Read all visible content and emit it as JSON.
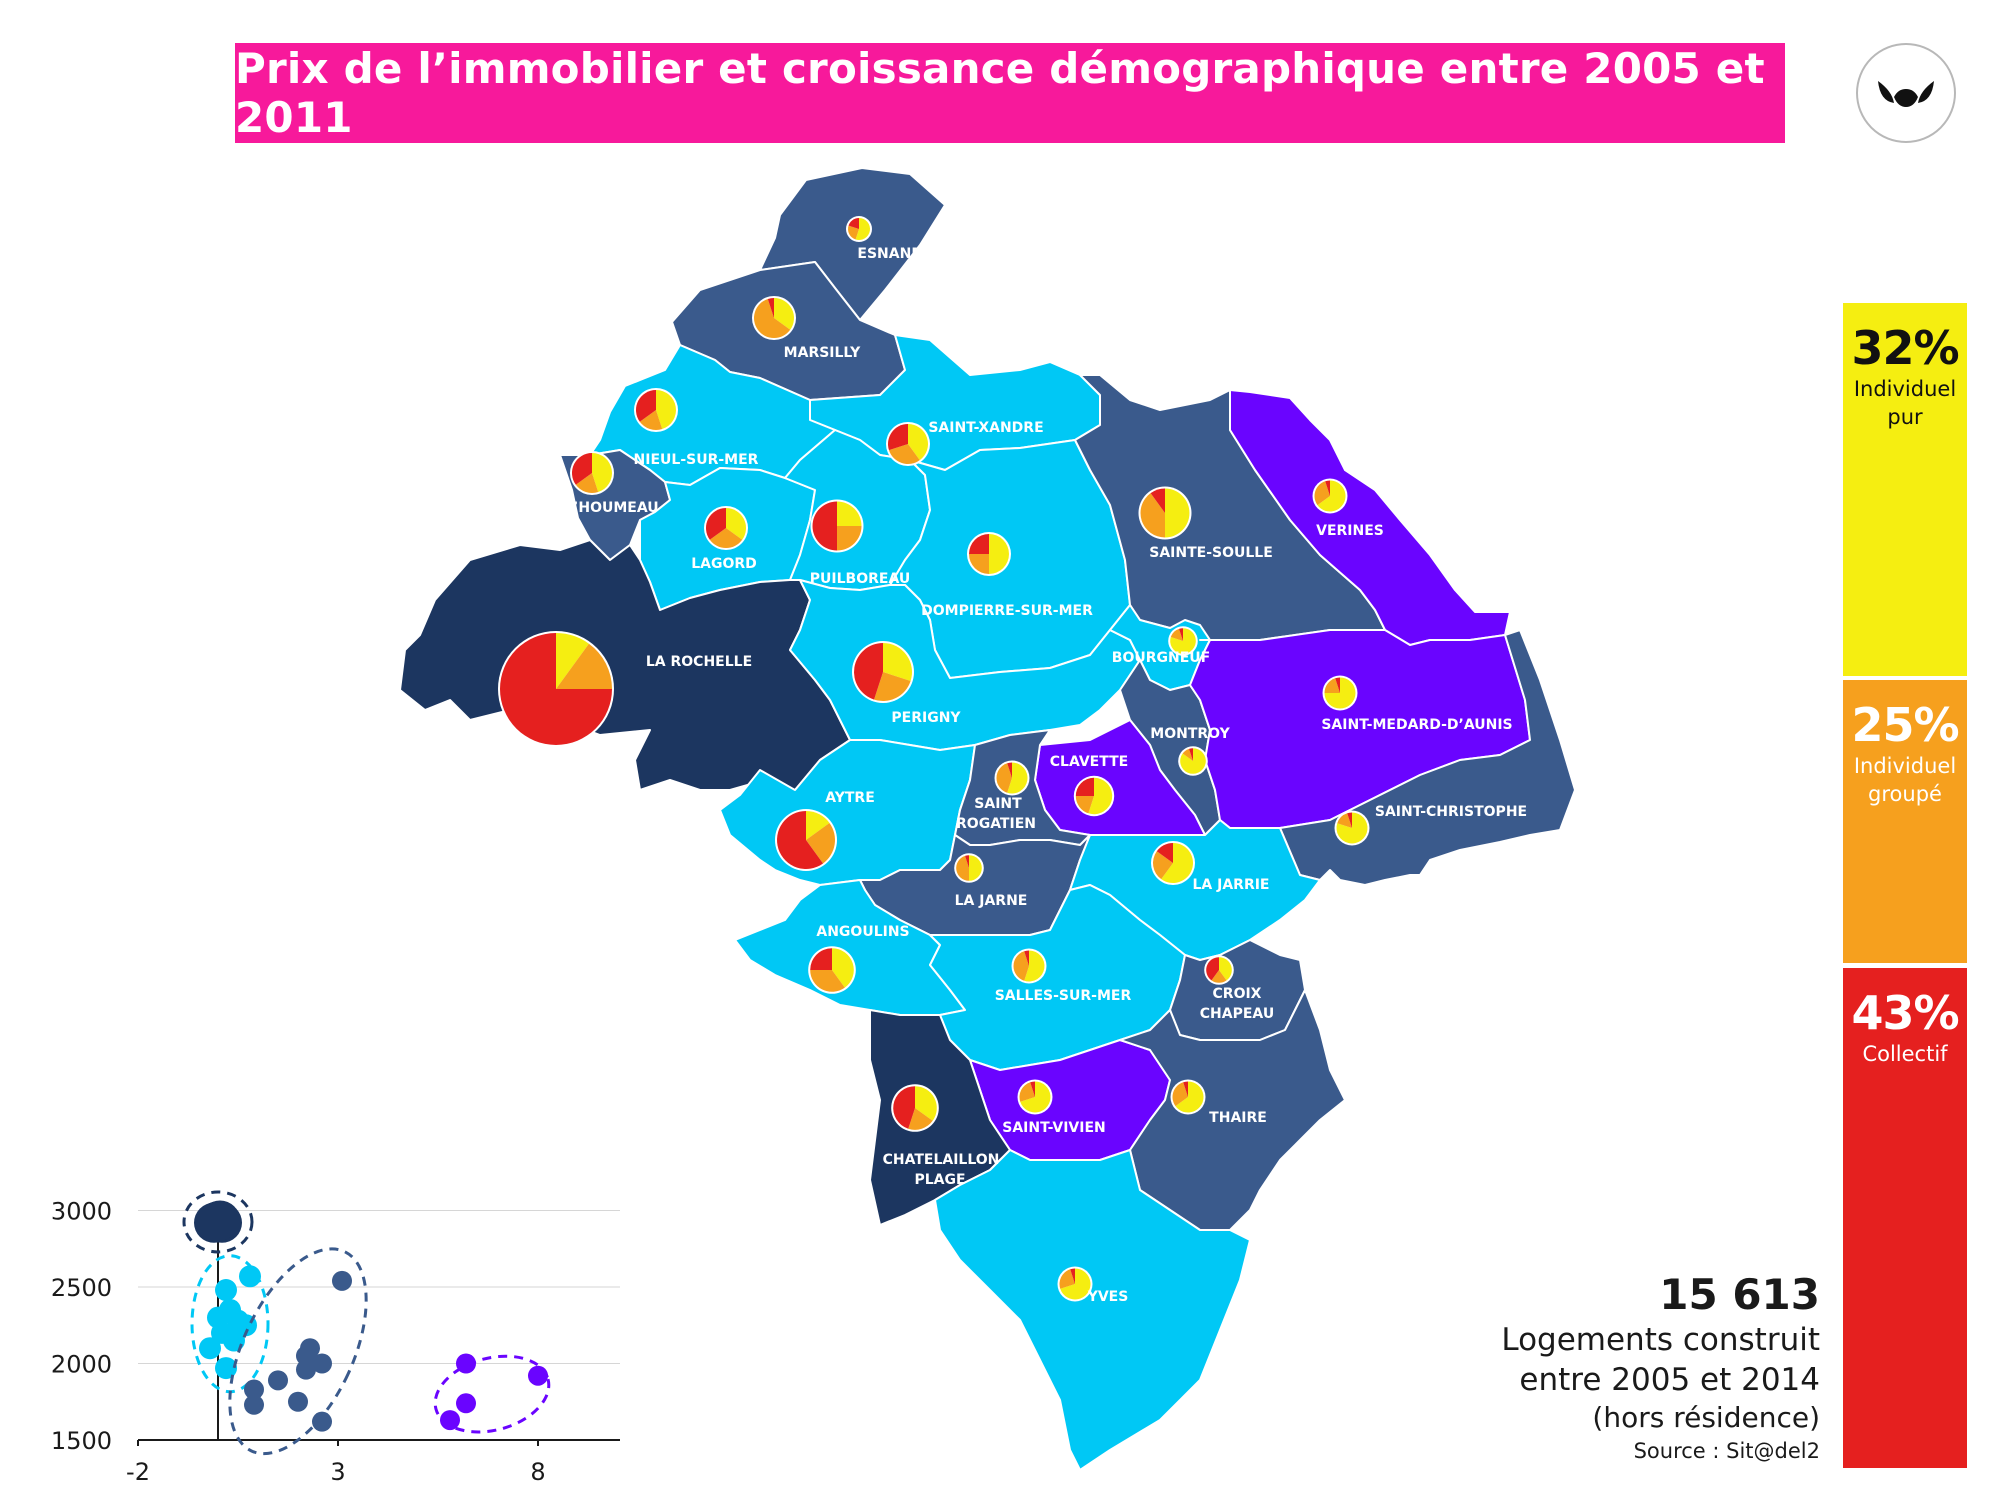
{
  "title": "Prix de l’immobilier et croissance démographique entre 2005 et 2011",
  "colors": {
    "banner": "#f7199b",
    "cat_darkest": "#1c3660",
    "cat_dark": "#3a5a8c",
    "cat_light": "#00c8f5",
    "cat_purple": "#6a04ff",
    "individuel_pur": "#f5ee11",
    "individuel_groupe": "#f6a01e",
    "collectif": "#e5201f"
  },
  "logo": {
    "icon": "stylized-leaves-logo"
  },
  "communes": [
    {
      "key": "esnandes",
      "label": "ESNANDES",
      "category": "dark"
    },
    {
      "key": "marsilly",
      "label": "MARSILLY",
      "category": "dark"
    },
    {
      "key": "saint_xandre",
      "label": "SAINT-XANDRE",
      "category": "light"
    },
    {
      "key": "nieul",
      "label": "NIEUL-SUR-MER",
      "category": "light"
    },
    {
      "key": "houmeau",
      "label": "L’HOUMEAU",
      "category": "dark"
    },
    {
      "key": "lagord",
      "label": "LAGORD",
      "category": "light"
    },
    {
      "key": "puilboreau",
      "label": "PUILBOREAU",
      "category": "light"
    },
    {
      "key": "dompierre",
      "label": "DOMPIERRE-SUR-MER",
      "category": "light"
    },
    {
      "key": "sainte_soulle",
      "label": "SAINTE-SOULLE",
      "category": "dark"
    },
    {
      "key": "verines",
      "label": "VERINES",
      "category": "purple"
    },
    {
      "key": "la_rochelle",
      "label": "LA ROCHELLE",
      "category": "darkest"
    },
    {
      "key": "perigny",
      "label": "PERIGNY",
      "category": "light"
    },
    {
      "key": "bourgneuf",
      "label": "BOURGNEUF",
      "category": "light"
    },
    {
      "key": "montroy",
      "label": "MONTROY",
      "category": "dark"
    },
    {
      "key": "saint_medard",
      "label": "SAINT-MEDARD-D’AUNIS",
      "category": "purple"
    },
    {
      "key": "clavette",
      "label": "CLAVETTE",
      "category": "purple"
    },
    {
      "key": "saint_christophe",
      "label": "SAINT-CHRISTOPHE",
      "category": "dark"
    },
    {
      "key": "aytre",
      "label": "AYTRE",
      "category": "light"
    },
    {
      "key": "saint_rogatien",
      "label": "SAINT ROGATIEN",
      "category": "dark"
    },
    {
      "key": "la_jarne",
      "label": "LA JARNE",
      "category": "dark"
    },
    {
      "key": "la_jarrie",
      "label": "LA JARRIE",
      "category": "light"
    },
    {
      "key": "angoulins",
      "label": "ANGOULINS",
      "category": "light"
    },
    {
      "key": "salles",
      "label": "SALLES-SUR-MER",
      "category": "light"
    },
    {
      "key": "croix_chapeau",
      "label": "CROIX CHAPEAU",
      "category": "dark"
    },
    {
      "key": "saint_vivien",
      "label": "SAINT-VIVIEN",
      "category": "purple"
    },
    {
      "key": "thaire",
      "label": "THAIRE",
      "category": "dark"
    },
    {
      "key": "chatelaillon",
      "label": "CHATELAILLON PLAGE",
      "category": "darkest"
    },
    {
      "key": "yves",
      "label": "YVES",
      "category": "light"
    }
  ],
  "map_pies": [
    {
      "commune": "esnandes",
      "size": 1,
      "shares": [
        0.55,
        0.25,
        0.2
      ]
    },
    {
      "commune": "marsilly",
      "size": 2,
      "shares": [
        0.35,
        0.6,
        0.05
      ]
    },
    {
      "commune": "nieul",
      "size": 2,
      "shares": [
        0.45,
        0.2,
        0.35
      ]
    },
    {
      "commune": "saint_xandre",
      "size": 2,
      "shares": [
        0.4,
        0.3,
        0.3
      ]
    },
    {
      "commune": "houmeau",
      "size": 2,
      "shares": [
        0.45,
        0.2,
        0.35
      ]
    },
    {
      "commune": "lagord",
      "size": 2,
      "shares": [
        0.35,
        0.3,
        0.35
      ]
    },
    {
      "commune": "puilboreau",
      "size": 2.5,
      "shares": [
        0.25,
        0.25,
        0.5
      ]
    },
    {
      "commune": "dompierre",
      "size": 2,
      "shares": [
        0.5,
        0.25,
        0.25
      ]
    },
    {
      "commune": "sainte_soulle",
      "size": 2.5,
      "shares": [
        0.5,
        0.4,
        0.1
      ]
    },
    {
      "commune": "verines",
      "size": 1.5,
      "shares": [
        0.65,
        0.3,
        0.05
      ]
    },
    {
      "commune": "la_rochelle",
      "size": 6,
      "shares": [
        0.1,
        0.15,
        0.75
      ]
    },
    {
      "commune": "perigny",
      "size": 3,
      "shares": [
        0.3,
        0.25,
        0.45
      ]
    },
    {
      "commune": "bourgneuf",
      "size": 1.2,
      "shares": [
        0.8,
        0.15,
        0.05
      ]
    },
    {
      "commune": "montroy",
      "size": 1.2,
      "shares": [
        0.85,
        0.1,
        0.05
      ]
    },
    {
      "commune": "saint_medard",
      "size": 1.5,
      "shares": [
        0.75,
        0.2,
        0.05
      ]
    },
    {
      "commune": "clavette",
      "size": 1.8,
      "shares": [
        0.55,
        0.2,
        0.25
      ]
    },
    {
      "commune": "saint_christophe",
      "size": 1.5,
      "shares": [
        0.8,
        0.15,
        0.05
      ]
    },
    {
      "commune": "aytre",
      "size": 3,
      "shares": [
        0.15,
        0.25,
        0.6
      ]
    },
    {
      "commune": "saint_rogatien",
      "size": 1.5,
      "shares": [
        0.55,
        0.4,
        0.05
      ]
    },
    {
      "commune": "la_jarne",
      "size": 1.2,
      "shares": [
        0.5,
        0.45,
        0.05
      ]
    },
    {
      "commune": "la_jarrie",
      "size": 2,
      "shares": [
        0.6,
        0.25,
        0.15
      ]
    },
    {
      "commune": "angoulins",
      "size": 2.2,
      "shares": [
        0.4,
        0.35,
        0.25
      ]
    },
    {
      "commune": "salles",
      "size": 1.5,
      "shares": [
        0.55,
        0.4,
        0.05
      ]
    },
    {
      "commune": "croix_chapeau",
      "size": 1.2,
      "shares": [
        0.4,
        0.2,
        0.4
      ]
    },
    {
      "commune": "saint_vivien",
      "size": 1.5,
      "shares": [
        0.7,
        0.25,
        0.05
      ]
    },
    {
      "commune": "thaire",
      "size": 1.5,
      "shares": [
        0.65,
        0.3,
        0.05
      ]
    },
    {
      "commune": "chatelaillon",
      "size": 2.2,
      "shares": [
        0.35,
        0.2,
        0.45
      ]
    },
    {
      "commune": "yves",
      "size": 1.5,
      "shares": [
        0.7,
        0.25,
        0.05
      ]
    }
  ],
  "legend": {
    "individuel_pur": {
      "pct": "32%",
      "label": "Individuel pur"
    },
    "individuel_groupe": {
      "pct": "25%",
      "label": "Individuel groupé"
    },
    "collectif": {
      "pct": "43%",
      "label": "Collectif"
    }
  },
  "stats": {
    "count": "15 613",
    "line1": "Logements construit",
    "line2": "entre 2005 et 2014",
    "note": "(hors résidence)",
    "source": "Source : Sit@del2"
  },
  "chart_data": {
    "type": "scatter",
    "x_ticks": [
      "-2",
      "3",
      "8"
    ],
    "y_ticks": [
      "1500",
      "2000",
      "2500",
      "3000"
    ],
    "xlim": [
      -2,
      10
    ],
    "ylim": [
      1500,
      3100
    ],
    "grid": true,
    "series": [
      {
        "category": "darkest",
        "points": [
          [
            0.0,
            2930
          ],
          [
            0.1,
            2920
          ],
          [
            -0.1,
            2920
          ],
          [
            0.05,
            2935
          ],
          [
            -0.05,
            2925
          ]
        ]
      },
      {
        "category": "light",
        "points": [
          [
            0.2,
            2480
          ],
          [
            0.8,
            2570
          ],
          [
            0.3,
            2350
          ],
          [
            0.5,
            2280
          ],
          [
            0.1,
            2200
          ],
          [
            0.7,
            2250
          ],
          [
            -0.2,
            2100
          ],
          [
            0.2,
            1970
          ],
          [
            0.0,
            2300
          ],
          [
            0.4,
            2150
          ]
        ]
      },
      {
        "category": "dark",
        "points": [
          [
            3.1,
            2540
          ],
          [
            2.3,
            2100
          ],
          [
            2.6,
            2000
          ],
          [
            2.2,
            2050
          ],
          [
            2.2,
            1960
          ],
          [
            1.5,
            1890
          ],
          [
            0.9,
            1830
          ],
          [
            0.9,
            1730
          ],
          [
            2.0,
            1750
          ],
          [
            2.6,
            1620
          ]
        ]
      },
      {
        "category": "purple",
        "points": [
          [
            6.2,
            2000
          ],
          [
            8.0,
            1920
          ],
          [
            6.2,
            1740
          ],
          [
            5.8,
            1630
          ]
        ]
      }
    ]
  }
}
